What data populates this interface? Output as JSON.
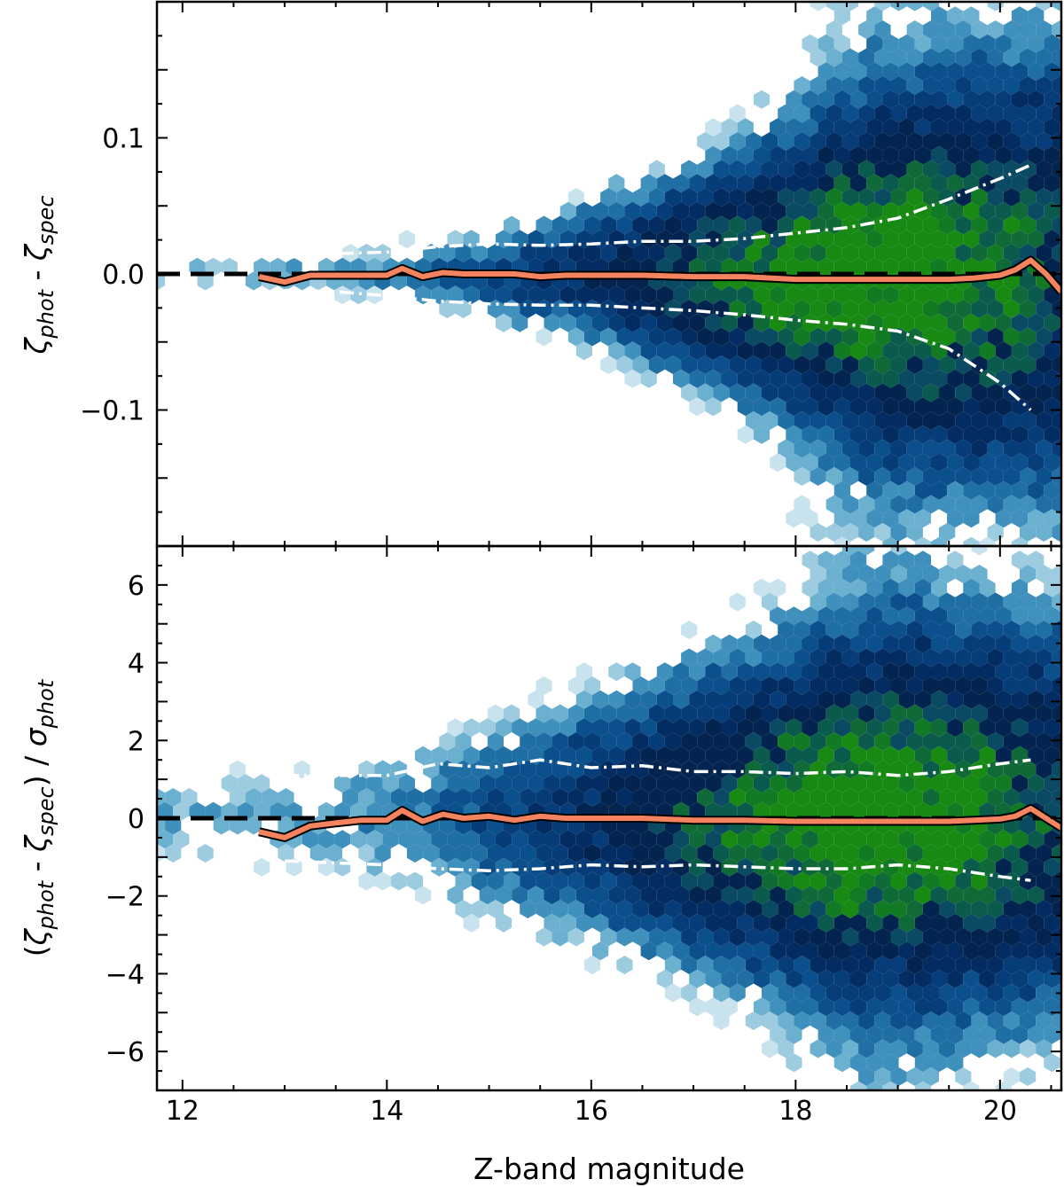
{
  "chart_data": [
    {
      "type": "scatter",
      "subtype": "hexbin-density",
      "panel": "top",
      "ylabel": {
        "base": "ζ",
        "sub1": "phot",
        "mid": " - ",
        "sub2": "spec"
      },
      "xlim": [
        11.75,
        20.6
      ],
      "ylim": [
        -0.2,
        0.2
      ],
      "yticks": [
        -0.1,
        0.0,
        0.1
      ],
      "ytick_labels": [
        "−0.1",
        "0.0",
        "0.1"
      ],
      "reference_line": {
        "y": 0,
        "style": "dashed",
        "color": "#000000"
      },
      "median": {
        "name": "median",
        "color": "#f4845f",
        "x": [
          12.75,
          13.0,
          13.25,
          13.5,
          13.75,
          14.0,
          14.15,
          14.35,
          14.55,
          14.75,
          15.0,
          15.25,
          15.5,
          15.75,
          16.0,
          16.5,
          17.0,
          17.5,
          18.0,
          18.5,
          19.0,
          19.5,
          19.75,
          20.0,
          20.15,
          20.3,
          20.45,
          20.6
        ],
        "y": [
          -0.002,
          -0.006,
          -0.001,
          -0.001,
          -0.001,
          -0.001,
          0.004,
          -0.002,
          0.001,
          0.0,
          0.0,
          0.0,
          -0.002,
          -0.001,
          -0.001,
          -0.001,
          -0.002,
          -0.002,
          -0.004,
          -0.004,
          -0.004,
          -0.004,
          -0.003,
          -0.001,
          0.003,
          0.01,
          0.0,
          -0.013
        ]
      },
      "upper_band": {
        "name": "upper percentile",
        "color": "#ffffff",
        "x": [
          13.0,
          13.5,
          14.0,
          14.5,
          15.0,
          15.5,
          16.0,
          16.5,
          17.0,
          17.5,
          18.0,
          18.5,
          19.0,
          19.5,
          20.0,
          20.3
        ],
        "y": [
          0.012,
          0.015,
          0.016,
          0.02,
          0.022,
          0.021,
          0.022,
          0.024,
          0.024,
          0.026,
          0.03,
          0.034,
          0.041,
          0.055,
          0.07,
          0.08
        ]
      },
      "lower_band": {
        "name": "lower percentile",
        "color": "#ffffff",
        "x": [
          13.0,
          13.5,
          14.0,
          14.5,
          15.0,
          15.5,
          16.0,
          16.5,
          17.0,
          17.5,
          18.0,
          18.5,
          19.0,
          19.5,
          20.0,
          20.3
        ],
        "y": [
          -0.012,
          -0.013,
          -0.016,
          -0.02,
          -0.022,
          -0.023,
          -0.023,
          -0.025,
          -0.027,
          -0.03,
          -0.034,
          -0.037,
          -0.042,
          -0.055,
          -0.08,
          -0.1
        ]
      }
    },
    {
      "type": "scatter",
      "subtype": "hexbin-density",
      "panel": "bottom",
      "xlabel": "Z-band magnitude",
      "ylabel": {
        "open": "(",
        "base": "ζ",
        "sub1": "phot",
        "mid": " - ",
        "sub2": "spec",
        "close": ") / ",
        "sigma": "σ",
        "sub3": "phot"
      },
      "xlim": [
        11.75,
        20.6
      ],
      "ylim": [
        -7,
        7
      ],
      "xticks": [
        12,
        14,
        16,
        18,
        20
      ],
      "xtick_labels": [
        "12",
        "14",
        "16",
        "18",
        "20"
      ],
      "yticks": [
        -6,
        -4,
        -2,
        0,
        2,
        4,
        6
      ],
      "ytick_labels": [
        "−6",
        "−4",
        "−2",
        "0",
        "2",
        "4",
        "6"
      ],
      "reference_line": {
        "y": 0,
        "style": "dashed",
        "color": "#000000"
      },
      "median": {
        "name": "median",
        "color": "#f4845f",
        "x": [
          12.75,
          13.0,
          13.25,
          13.5,
          13.75,
          14.0,
          14.15,
          14.35,
          14.55,
          14.75,
          15.0,
          15.25,
          15.5,
          15.75,
          16.0,
          16.5,
          17.0,
          17.5,
          18.0,
          18.5,
          19.0,
          19.5,
          19.75,
          20.0,
          20.15,
          20.3,
          20.45,
          20.6
        ],
        "y": [
          -0.35,
          -0.5,
          -0.2,
          -0.12,
          -0.05,
          -0.05,
          0.2,
          -0.08,
          0.1,
          0.0,
          0.05,
          -0.05,
          0.05,
          0.0,
          0.0,
          0.0,
          -0.05,
          -0.05,
          -0.08,
          -0.08,
          -0.08,
          -0.08,
          -0.05,
          -0.02,
          0.05,
          0.25,
          0.0,
          -0.25
        ]
      },
      "upper_band": {
        "name": "upper percentile",
        "color": "#ffffff",
        "x": [
          13.0,
          13.5,
          14.0,
          14.5,
          15.0,
          15.5,
          16.0,
          16.5,
          17.0,
          17.5,
          18.0,
          18.5,
          19.0,
          19.5,
          20.0,
          20.3
        ],
        "y": [
          1.1,
          1.1,
          1.1,
          1.4,
          1.3,
          1.5,
          1.3,
          1.35,
          1.2,
          1.2,
          1.15,
          1.2,
          1.1,
          1.2,
          1.4,
          1.5
        ]
      },
      "lower_band": {
        "name": "lower percentile",
        "color": "#ffffff",
        "x": [
          13.0,
          13.5,
          14.0,
          14.5,
          15.0,
          15.5,
          16.0,
          16.5,
          17.0,
          17.5,
          18.0,
          18.5,
          19.0,
          19.5,
          20.0,
          20.3
        ],
        "y": [
          -1.1,
          -1.15,
          -1.2,
          -1.3,
          -1.35,
          -1.3,
          -1.2,
          -1.25,
          -1.2,
          -1.25,
          -1.3,
          -1.3,
          -1.2,
          -1.3,
          -1.5,
          -1.6
        ]
      }
    }
  ]
}
